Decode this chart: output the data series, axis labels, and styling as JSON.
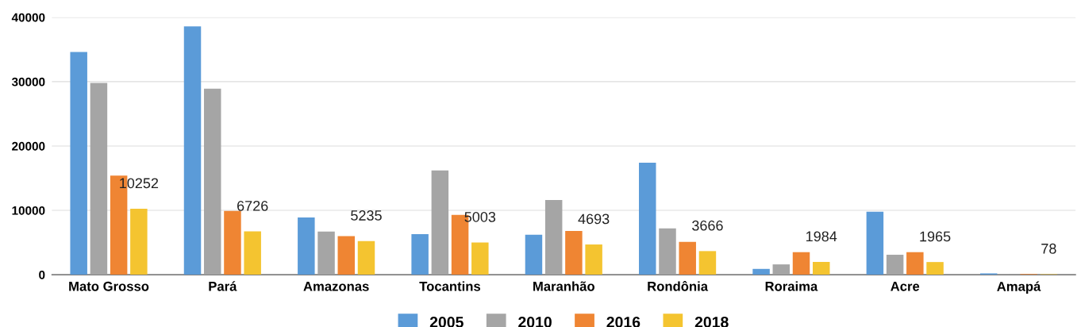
{
  "chart_data": {
    "type": "bar",
    "categories": [
      "Mato Grosso",
      "Pará",
      "Amazonas",
      "Tocantins",
      "Maranhão",
      "Rondônia",
      "Roraima",
      "Acre",
      "Amapá"
    ],
    "series": [
      {
        "name": "2005",
        "color": "#5b9bd8",
        "values": [
          34600,
          38600,
          8900,
          6300,
          6200,
          17400,
          900,
          9800,
          200
        ]
      },
      {
        "name": "2010",
        "color": "#a5a5a5",
        "values": [
          29800,
          28900,
          6700,
          16200,
          11600,
          7200,
          1600,
          3100,
          50
        ]
      },
      {
        "name": "2016",
        "color": "#ef8533",
        "values": [
          15400,
          9900,
          6000,
          9300,
          6800,
          5100,
          3500,
          3500,
          100
        ]
      },
      {
        "name": "2018",
        "color": "#f4c430",
        "values": [
          10252,
          6726,
          5235,
          5003,
          4693,
          3666,
          1984,
          1965,
          78
        ],
        "value_labels": [
          "10252",
          "6726",
          "5235",
          "5003",
          "4693",
          "3666",
          "1984",
          "1965",
          "78"
        ]
      }
    ],
    "ylim": [
      0,
      40000
    ],
    "yticks": [
      0,
      10000,
      20000,
      30000,
      40000
    ],
    "grid": "y",
    "legend": "bottom"
  }
}
